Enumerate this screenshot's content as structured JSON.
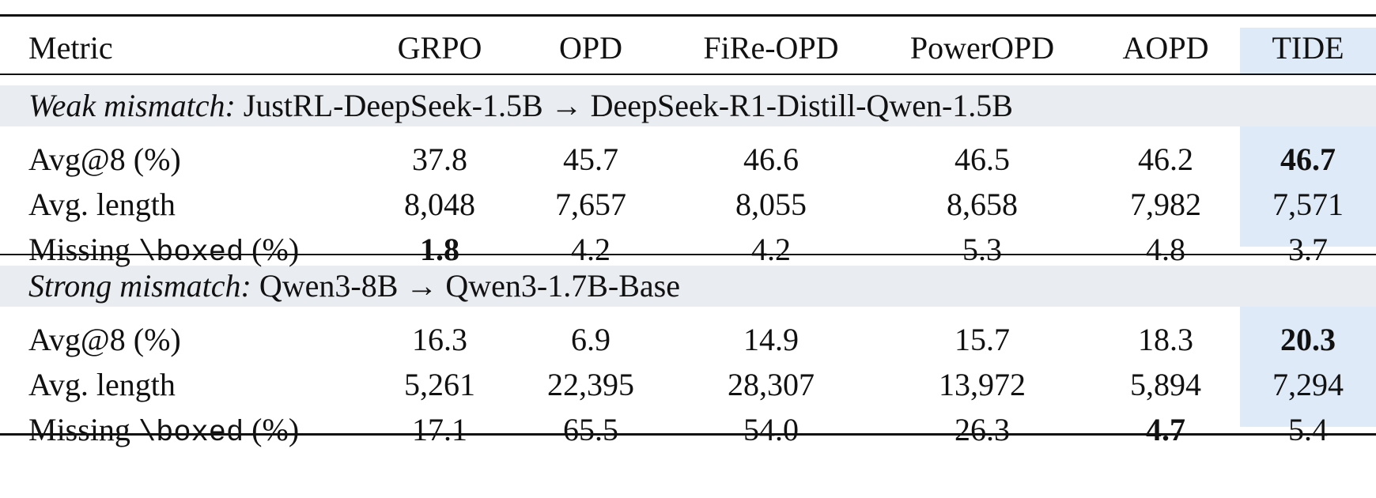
{
  "table": {
    "headers": [
      "Metric",
      "GRPO",
      "OPD",
      "FiRe-OPD",
      "PowerOPD",
      "AOPD",
      "TIDE"
    ],
    "sections": [
      {
        "label_italic": "Weak mismatch:",
        "label_rest": " JustRL-DeepSeek-1.5B → DeepSeek-R1-Distill-Qwen-1.5B",
        "rows": [
          {
            "metric": "Avg@8 (%)",
            "values": [
              "37.8",
              "45.7",
              "46.6",
              "46.5",
              "46.2",
              "46.7"
            ],
            "bold": [
              false,
              false,
              false,
              false,
              false,
              true
            ]
          },
          {
            "metric": "Avg. length",
            "values": [
              "8,048",
              "7,657",
              "8,055",
              "8,658",
              "7,982",
              "7,571"
            ],
            "bold": [
              false,
              false,
              false,
              false,
              false,
              false
            ]
          },
          {
            "metric_pre": "Missing ",
            "metric_code": "\\boxed",
            "metric_post": " (%)",
            "values": [
              "1.8",
              "4.2",
              "4.2",
              "5.3",
              "4.8",
              "3.7"
            ],
            "bold": [
              true,
              false,
              false,
              false,
              false,
              false
            ]
          }
        ]
      },
      {
        "label_italic": "Strong mismatch:",
        "label_rest": " Qwen3-8B → Qwen3-1.7B-Base",
        "rows": [
          {
            "metric": "Avg@8 (%)",
            "values": [
              "16.3",
              "6.9",
              "14.9",
              "15.7",
              "18.3",
              "20.3"
            ],
            "bold": [
              false,
              false,
              false,
              false,
              false,
              true
            ]
          },
          {
            "metric": "Avg. length",
            "values": [
              "5,261",
              "22,395",
              "28,307",
              "13,972",
              "5,894",
              "7,294"
            ],
            "bold": [
              false,
              false,
              false,
              false,
              false,
              false
            ]
          },
          {
            "metric_pre": "Missing ",
            "metric_code": "\\boxed",
            "metric_post": " (%)",
            "values": [
              "17.1",
              "65.5",
              "54.0",
              "26.3",
              "4.7",
              "5.4"
            ],
            "bold": [
              false,
              false,
              false,
              false,
              true,
              false
            ]
          }
        ]
      }
    ]
  },
  "colors": {
    "section_band": "#e9ecf0",
    "highlight_column": "#deeaf7"
  }
}
